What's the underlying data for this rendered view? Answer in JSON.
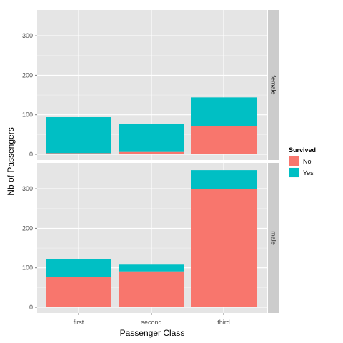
{
  "chart_data": {
    "type": "bar",
    "stacked": true,
    "facet": "vertical",
    "xlabel": "Passenger Class",
    "ylabel": "Nb of Passengers",
    "categories": [
      "first",
      "second",
      "third"
    ],
    "y_ticks": [
      0,
      100,
      200,
      300
    ],
    "ylim": [
      0,
      360
    ],
    "grid": true,
    "legend": {
      "title": "Survived",
      "placement": "right",
      "entries": [
        {
          "name": "No",
          "color": "#F8766D"
        },
        {
          "name": "Yes",
          "color": "#00BFC4"
        }
      ]
    },
    "panels": [
      {
        "label": "female",
        "series": [
          {
            "name": "No",
            "values": [
              3,
              6,
              72
            ]
          },
          {
            "name": "Yes",
            "values": [
              91,
              70,
              72
            ]
          }
        ]
      },
      {
        "label": "male",
        "series": [
          {
            "name": "No",
            "values": [
              77,
              91,
              300
            ]
          },
          {
            "name": "Yes",
            "values": [
              45,
              17,
              47
            ]
          }
        ]
      }
    ],
    "colors": {
      "panel_bg": "#E5E5E5",
      "grid_major": "#FFFFFF",
      "grid_minor": "#F2F2F2",
      "strip_bg": "#CCCCCC",
      "tick_text": "#4D4D4D"
    }
  }
}
